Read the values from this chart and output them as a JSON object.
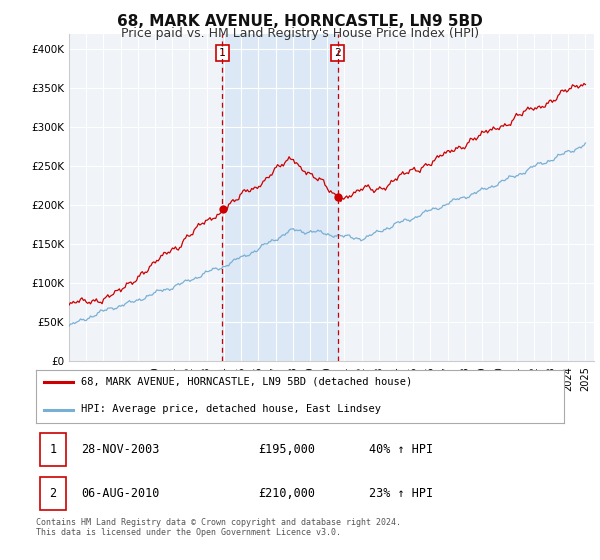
{
  "title": "68, MARK AVENUE, HORNCASTLE, LN9 5BD",
  "subtitle": "Price paid vs. HM Land Registry's House Price Index (HPI)",
  "title_fontsize": 11,
  "subtitle_fontsize": 9,
  "ylabel_ticks": [
    "£0",
    "£50K",
    "£100K",
    "£150K",
    "£200K",
    "£250K",
    "£300K",
    "£350K",
    "£400K"
  ],
  "ytick_vals": [
    0,
    50000,
    100000,
    150000,
    200000,
    250000,
    300000,
    350000,
    400000
  ],
  "ylim": [
    0,
    420000
  ],
  "xlim_start": 1995,
  "xlim_end": 2025.5,
  "background_color": "#ffffff",
  "plot_bg_color": "#f0f4f8",
  "grid_color": "#ffffff",
  "marker1_x": 2003.91,
  "marker2_x": 2010.6,
  "marker1_label": "1",
  "marker2_label": "2",
  "marker1_price": 195000,
  "marker2_price": 210000,
  "legend_line1": "68, MARK AVENUE, HORNCASTLE, LN9 5BD (detached house)",
  "legend_line2": "HPI: Average price, detached house, East Lindsey",
  "table_row1": [
    "1",
    "28-NOV-2003",
    "£195,000",
    "40% ↑ HPI"
  ],
  "table_row2": [
    "2",
    "06-AUG-2010",
    "£210,000",
    "23% ↑ HPI"
  ],
  "footer": "Contains HM Land Registry data © Crown copyright and database right 2024.\nThis data is licensed under the Open Government Licence v3.0.",
  "red_color": "#cc0000",
  "blue_color": "#7aafd4",
  "shade_color": "#dce8f5"
}
